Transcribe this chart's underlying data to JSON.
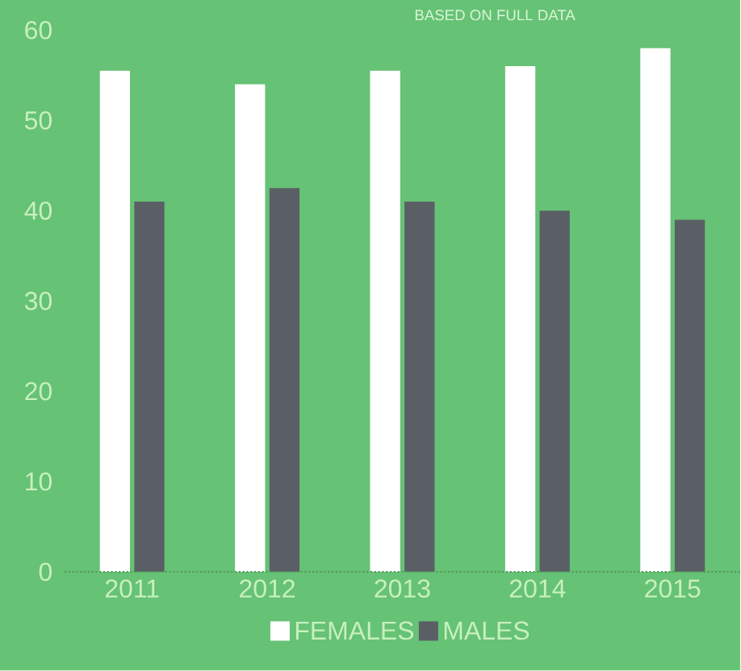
{
  "chart_data": {
    "type": "bar",
    "subtitle": "BASED ON FULL DATA",
    "categories": [
      "2011",
      "2012",
      "2013",
      "2014",
      "2015"
    ],
    "series": [
      {
        "name": "FEMALES",
        "color": "#ffffff",
        "values": [
          55.5,
          54,
          55.5,
          56,
          58
        ]
      },
      {
        "name": "MALES",
        "color": "#5a5f66",
        "values": [
          41,
          42.5,
          41,
          40,
          39
        ]
      }
    ],
    "ylim": [
      0,
      60
    ],
    "yticks": [
      0,
      10,
      20,
      30,
      40,
      50,
      60
    ],
    "grid": false,
    "legend": "bottom"
  }
}
